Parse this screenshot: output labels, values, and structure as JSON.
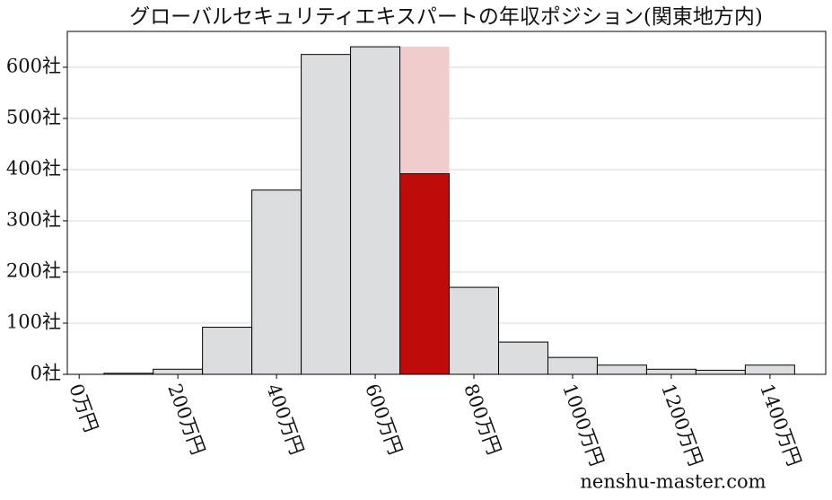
{
  "chart_data": {
    "type": "histogram",
    "title": "グローバルセキュリティエキスパートの年収ポジション(関東地方内)",
    "bins": [
      50,
      150,
      250,
      350,
      450,
      550,
      650,
      750,
      850,
      950,
      1050,
      1150,
      1250,
      1350,
      1450
    ],
    "values": [
      2,
      10,
      92,
      360,
      625,
      640,
      392,
      170,
      63,
      33,
      18,
      10,
      8,
      18
    ],
    "color": "#dcdddf",
    "highlight_index": 6,
    "highlight_color": "#c00b0b",
    "highlight_band_color": "#f0cccc",
    "xlim": [
      -24,
      1513
    ],
    "ylim": [
      0,
      670
    ],
    "xticks": [
      {
        "value": 0,
        "label": "0万円"
      },
      {
        "value": 200,
        "label": "200万円"
      },
      {
        "value": 400,
        "label": "400万円"
      },
      {
        "value": 600,
        "label": "600万円"
      },
      {
        "value": 800,
        "label": "800万円"
      },
      {
        "value": 1000,
        "label": "1000万円"
      },
      {
        "value": 1200,
        "label": "1200万円"
      },
      {
        "value": 1400,
        "label": "1400万円"
      }
    ],
    "yticks": [
      {
        "value": 0,
        "label": "0社"
      },
      {
        "value": 100,
        "label": "100社"
      },
      {
        "value": 200,
        "label": "200社"
      },
      {
        "value": 300,
        "label": "300社"
      },
      {
        "value": 400,
        "label": "400社"
      },
      {
        "value": 500,
        "label": "500社"
      },
      {
        "value": 600,
        "label": "600社"
      }
    ],
    "grid": true,
    "watermark": "nenshu-master.com"
  }
}
